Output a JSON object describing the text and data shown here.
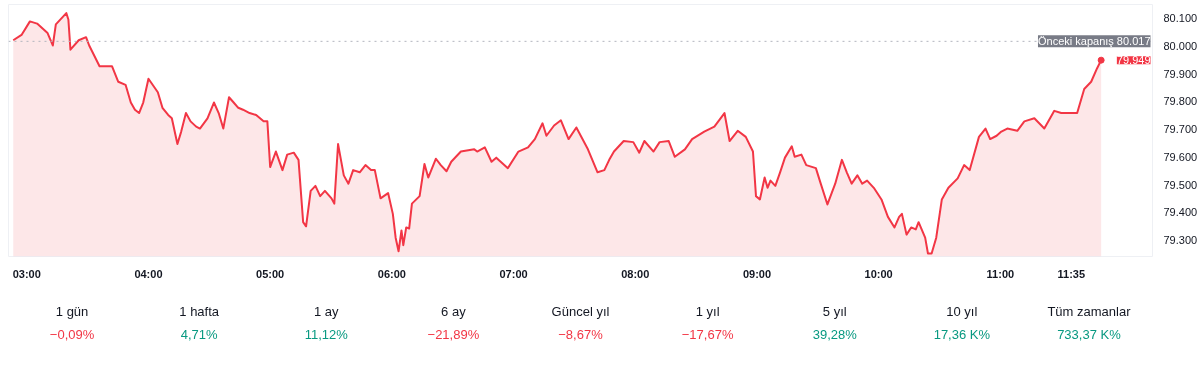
{
  "chart_data": [
    {
      "type": "area",
      "xlim": [
        2.85,
        12.25
      ],
      "ylim": [
        79240,
        80150
      ],
      "xticks": [
        {
          "value": 3,
          "label": "03:00"
        },
        {
          "value": 4,
          "label": "04:00"
        },
        {
          "value": 5,
          "label": "05:00"
        },
        {
          "value": 6,
          "label": "06:00"
        },
        {
          "value": 7,
          "label": "07:00"
        },
        {
          "value": 8,
          "label": "08:00"
        },
        {
          "value": 9,
          "label": "09:00"
        },
        {
          "value": 10,
          "label": "10:00"
        },
        {
          "value": 11,
          "label": "11:00"
        },
        {
          "value": 11.583,
          "label": "11:35"
        }
      ],
      "yticks": [
        {
          "value": 79300,
          "label": "79.300"
        },
        {
          "value": 79400,
          "label": "79.400"
        },
        {
          "value": 79500,
          "label": "79.500"
        },
        {
          "value": 79600,
          "label": "79.600"
        },
        {
          "value": 79700,
          "label": "79.700"
        },
        {
          "value": 79800,
          "label": "79.800"
        },
        {
          "value": 79900,
          "label": "79.900"
        },
        {
          "value": 80000,
          "label": "80.000"
        },
        {
          "value": 80100,
          "label": "80.100"
        }
      ],
      "ref_lines": [
        {
          "axis": "y",
          "value": 80017,
          "label": "Önceki kapanış 80.017",
          "color": "#b2b5be",
          "line_style": "dotted"
        }
      ],
      "annotations": [
        {
          "text": "79.949",
          "x": 11.828,
          "y": 79949
        }
      ],
      "series": [
        {
          "color": "#f23645",
          "x": [
            2.889,
            2.957,
            3.026,
            3.085,
            3.171,
            3.214,
            3.239,
            3.325,
            3.342,
            3.359,
            3.427,
            3.487,
            3.513,
            3.598,
            3.701,
            3.752,
            3.812,
            3.855,
            3.889,
            3.923,
            3.957,
            4.0,
            4.077,
            4.115,
            4.162,
            4.192,
            4.238,
            4.269,
            4.308,
            4.346,
            4.392,
            4.423,
            4.485,
            4.538,
            4.577,
            4.615,
            4.662,
            4.7,
            4.738,
            4.777,
            4.831,
            4.885,
            4.946,
            4.977,
            5.0,
            5.047,
            5.101,
            5.14,
            5.194,
            5.233,
            5.271,
            5.295,
            5.333,
            5.372,
            5.411,
            5.45,
            5.504,
            5.527,
            5.558,
            5.605,
            5.643,
            5.682,
            5.736,
            5.783,
            5.829,
            5.86,
            5.907,
            5.969,
            6.008,
            6.031,
            6.055,
            6.079,
            6.094,
            6.118,
            6.142,
            6.165,
            6.228,
            6.268,
            6.299,
            6.362,
            6.402,
            6.449,
            6.488,
            6.567,
            6.677,
            6.701,
            6.764,
            6.819,
            6.858,
            6.953,
            7.04,
            7.119,
            7.175,
            7.238,
            7.27,
            7.333,
            7.389,
            7.452,
            7.516,
            7.611,
            7.69,
            7.746,
            7.786,
            7.825,
            7.905,
            7.984,
            8.033,
            8.075,
            8.15,
            8.2,
            8.275,
            8.325,
            8.408,
            8.467,
            8.567,
            8.65,
            8.733,
            8.775,
            8.842,
            8.908,
            8.967,
            8.992,
            9.024,
            9.063,
            9.087,
            9.111,
            9.151,
            9.19,
            9.23,
            9.286,
            9.31,
            9.365,
            9.405,
            9.484,
            9.524,
            9.579,
            9.643,
            9.698,
            9.738,
            9.778,
            9.825,
            9.865,
            9.905,
            9.96,
            10.023,
            10.076,
            10.13,
            10.168,
            10.191,
            10.229,
            10.267,
            10.305,
            10.328,
            10.382,
            10.405,
            10.435,
            10.473,
            10.519,
            10.573,
            10.649,
            10.702,
            10.748,
            10.824,
            10.878,
            10.916,
            10.969,
            11.008,
            11.057,
            11.139,
            11.197,
            11.279,
            11.361,
            11.443,
            11.5,
            11.631,
            11.689,
            11.746,
            11.795,
            11.828
          ],
          "values": [
            80021,
            80040,
            80089,
            80081,
            80047,
            80002,
            80078,
            80119,
            80096,
            79987,
            80021,
            80032,
            80002,
            79927,
            79927,
            79871,
            79860,
            79796,
            79770,
            79758,
            79796,
            79882,
            79833,
            79777,
            79751,
            79739,
            79646,
            79691,
            79758,
            79728,
            79709,
            79702,
            79739,
            79796,
            79758,
            79702,
            79815,
            79796,
            79777,
            79770,
            79758,
            79751,
            79728,
            79728,
            79563,
            79619,
            79552,
            79608,
            79615,
            79589,
            79364,
            79349,
            79477,
            79495,
            79458,
            79477,
            79450,
            79431,
            79646,
            79533,
            79503,
            79552,
            79544,
            79570,
            79552,
            79552,
            79450,
            79469,
            79394,
            79308,
            79259,
            79334,
            79281,
            79345,
            79341,
            79431,
            79458,
            79574,
            79525,
            79593,
            79570,
            79548,
            79582,
            79619,
            79627,
            79619,
            79634,
            79582,
            79597,
            79559,
            79619,
            79634,
            79664,
            79721,
            79676,
            79713,
            79732,
            79664,
            79706,
            79627,
            79544,
            79552,
            79589,
            79619,
            79657,
            79653,
            79615,
            79657,
            79619,
            79653,
            79657,
            79600,
            79627,
            79664,
            79691,
            79709,
            79758,
            79657,
            79694,
            79672,
            79619,
            79458,
            79446,
            79525,
            79488,
            79514,
            79495,
            79544,
            79597,
            79638,
            79600,
            79608,
            79570,
            79559,
            79503,
            79428,
            79503,
            79589,
            79544,
            79503,
            79533,
            79503,
            79514,
            79488,
            79446,
            79383,
            79345,
            79383,
            79394,
            79319,
            79345,
            79338,
            79364,
            79308,
            79251,
            79251,
            79308,
            79446,
            79488,
            79522,
            79570,
            79552,
            79672,
            79702,
            79664,
            79676,
            79691,
            79702,
            79694,
            79728,
            79739,
            79702,
            79766,
            79758,
            79758,
            79845,
            79871,
            79920,
            79949
          ]
        }
      ]
    },
    {
      "type": "other",
      "annotations": [
        "1 gün",
        "−0,09%",
        "1 hafta",
        "4,71%",
        "1 ay",
        "11,12%",
        "6 ay",
        "−21,89%",
        "Güncel yıl",
        "−8,67%",
        "1 yıl",
        "−17,67%",
        "5 yıl",
        "39,28%",
        "10 yıl",
        "17,36 K%",
        "Tüm zamanlar",
        "733,37 K%"
      ],
      "colors": [
        "#f23645",
        "#089981",
        "#089981",
        "#f23645",
        "#f23645",
        "#f23645",
        "#089981",
        "#089981",
        "#089981"
      ]
    }
  ]
}
